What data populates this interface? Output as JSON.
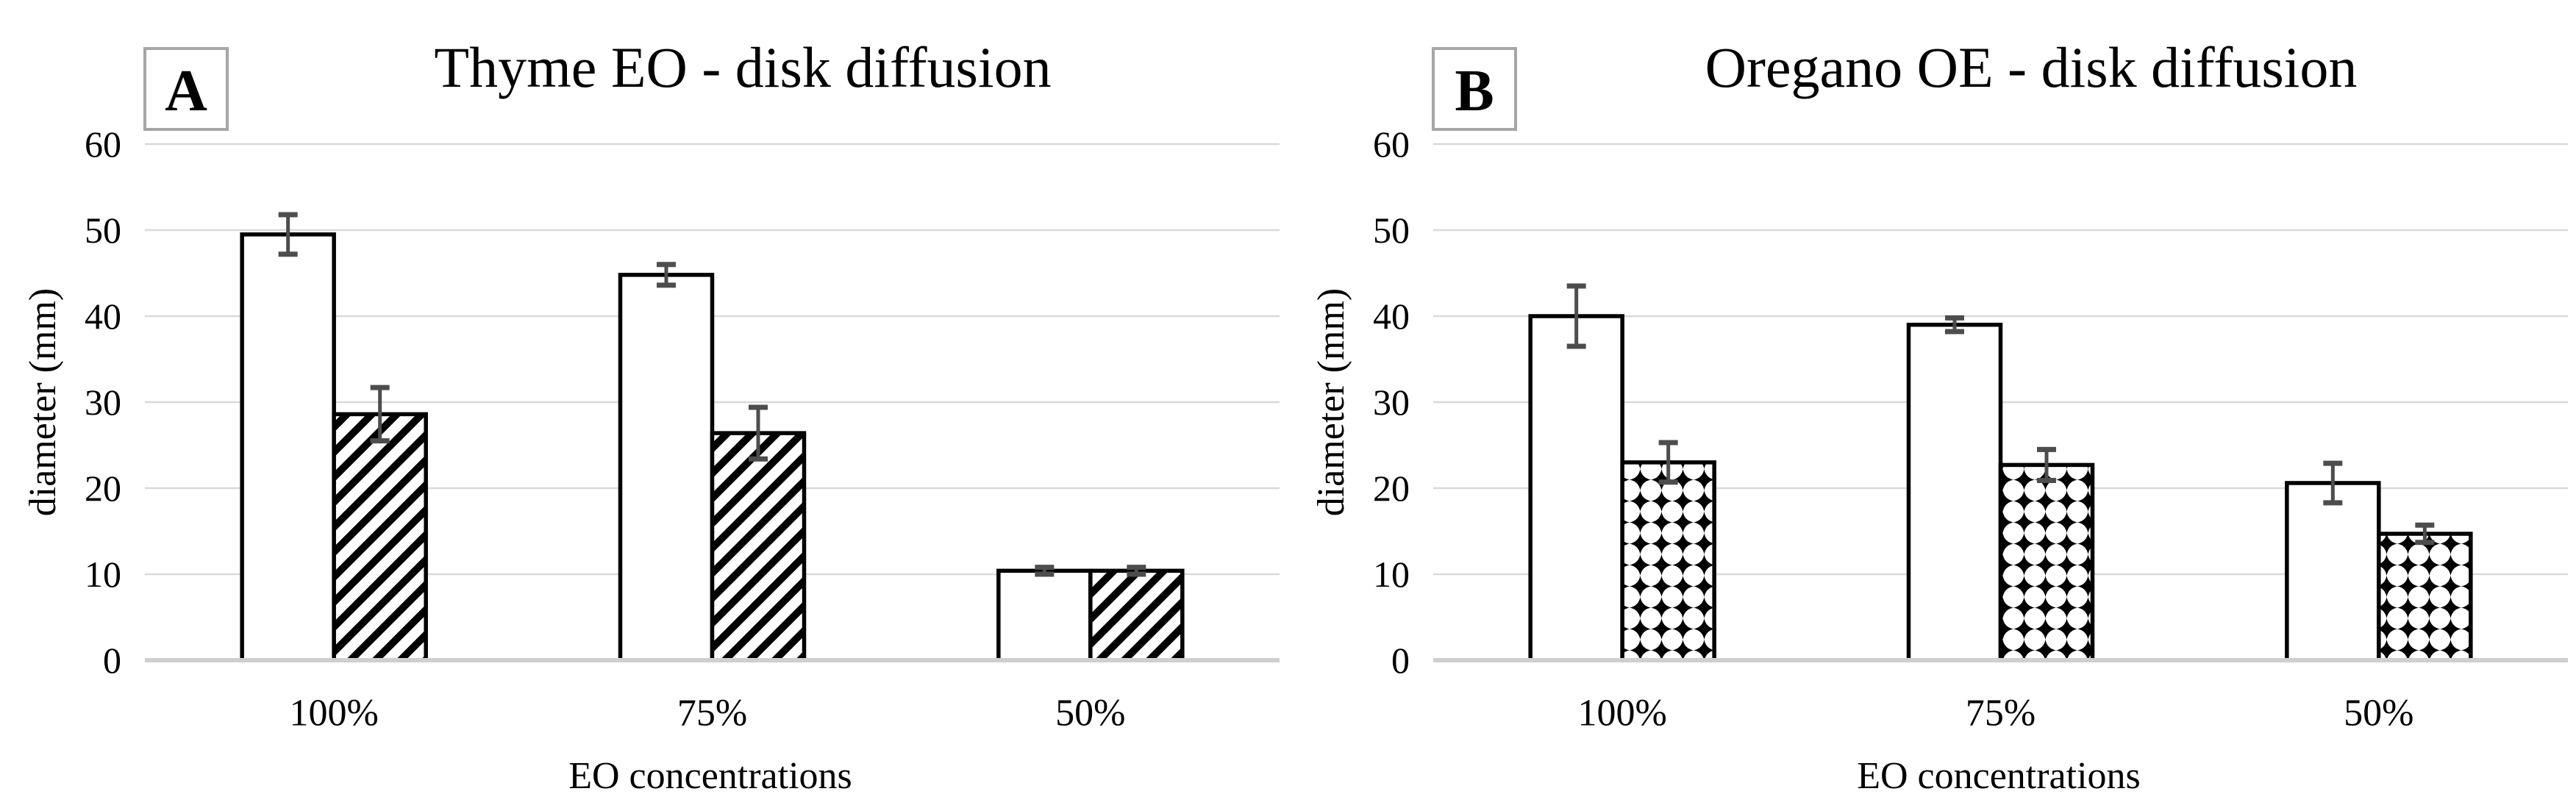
{
  "figure": {
    "background": "#ffffff",
    "colors": {
      "gridline": "#d9d9d9",
      "axis_line": "#cfcfcf",
      "bar_fill": "#ffffff",
      "bar_outline": "#000000",
      "error_bar": "#4d4d4d",
      "panel_box_border": "#a6a6a6",
      "text": "#000000"
    }
  },
  "charts": [
    {
      "panel_label": "A",
      "title": "Thyme EO - disk diffusion",
      "chart_data": {
        "type": "bar",
        "categories": [
          "100%",
          "75%",
          "50%"
        ],
        "series": [
          {
            "name": "plain-white-bars",
            "pattern": "plain",
            "values": [
              49.5,
              44.8,
              10.4
            ],
            "errors": [
              2.3,
              1.2,
              0.4
            ]
          },
          {
            "name": "hatched-bars",
            "pattern": "diagonal-hatch",
            "values": [
              28.6,
              26.4,
              10.4
            ],
            "errors": [
              3.1,
              3.0,
              0.4
            ]
          }
        ],
        "xlabel": "EO concentrations",
        "ylabel": "diameter (mm)",
        "ylim": [
          0,
          60
        ],
        "yticks": [
          0,
          10,
          20,
          30,
          40,
          50,
          60
        ],
        "grid": true,
        "legend": false,
        "error_bars": true
      }
    },
    {
      "panel_label": "B",
      "title": "Oregano OE - disk diffusion",
      "chart_data": {
        "type": "bar",
        "categories": [
          "100%",
          "75%",
          "50%"
        ],
        "series": [
          {
            "name": "plain-white-bars",
            "pattern": "plain",
            "values": [
              40.0,
              39.0,
              20.6
            ],
            "errors": [
              3.5,
              0.8,
              2.3
            ]
          },
          {
            "name": "diamond-bars",
            "pattern": "diamond-checker",
            "values": [
              23.0,
              22.7,
              14.7
            ],
            "errors": [
              2.3,
              1.8,
              1.0
            ]
          }
        ],
        "xlabel": "EO concentrations",
        "ylabel": "diameter (mm)",
        "ylim": [
          0,
          60
        ],
        "yticks": [
          0,
          10,
          20,
          30,
          40,
          50,
          60
        ],
        "grid": true,
        "legend": false,
        "error_bars": true
      }
    }
  ]
}
